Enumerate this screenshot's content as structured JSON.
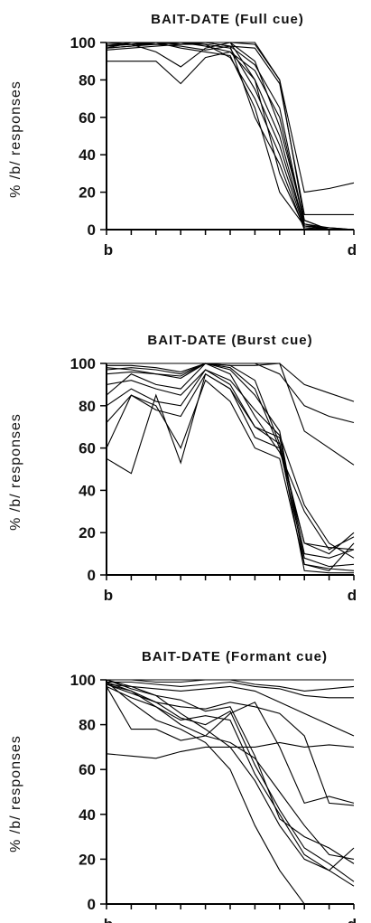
{
  "chart_data": [
    {
      "type": "line",
      "title": "BAIT-DATE  (Full  cue)",
      "ylabel": "%  /b/  responses",
      "x_tick_labels": [
        "b",
        "d"
      ],
      "y_ticks": [
        0,
        20,
        40,
        60,
        80,
        100
      ],
      "ylim": [
        0,
        100
      ],
      "x_steps": 10,
      "series": [
        {
          "values": [
            100,
            100,
            100,
            100,
            100,
            100,
            100,
            80,
            20,
            22,
            25
          ]
        },
        {
          "values": [
            98,
            99,
            100,
            100,
            100,
            98,
            97,
            78,
            8,
            8,
            8
          ]
        },
        {
          "values": [
            97,
            98,
            99,
            100,
            98,
            95,
            85,
            60,
            3,
            1,
            0
          ]
        },
        {
          "values": [
            99,
            99,
            95,
            87,
            97,
            100,
            90,
            55,
            5,
            0,
            0
          ]
        },
        {
          "values": [
            90,
            90,
            90,
            78,
            92,
            95,
            80,
            50,
            2,
            1,
            0
          ]
        },
        {
          "values": [
            96,
            97,
            98,
            99,
            99,
            92,
            70,
            40,
            1,
            0,
            0
          ]
        },
        {
          "values": [
            97,
            98,
            100,
            100,
            99,
            97,
            75,
            45,
            2,
            0,
            0
          ]
        },
        {
          "values": [
            98,
            99,
            100,
            99,
            100,
            98,
            88,
            65,
            3,
            0,
            0
          ]
        },
        {
          "values": [
            100,
            100,
            100,
            99,
            100,
            100,
            80,
            30,
            1,
            0,
            0
          ]
        },
        {
          "values": [
            97,
            100,
            99,
            98,
            96,
            98,
            60,
            35,
            0,
            0,
            0
          ]
        },
        {
          "values": [
            100,
            99,
            99,
            100,
            100,
            100,
            99,
            80,
            5,
            0,
            0
          ]
        },
        {
          "values": [
            98,
            100,
            100,
            97,
            95,
            93,
            65,
            20,
            2,
            0,
            0
          ]
        }
      ]
    },
    {
      "type": "line",
      "title": "BAIT-DATE  (Burst  cue)",
      "ylabel": "%  /b/  responses",
      "x_tick_labels": [
        "b",
        "d"
      ],
      "y_ticks": [
        0,
        20,
        40,
        60,
        80,
        100
      ],
      "ylim": [
        0,
        100
      ],
      "x_steps": 10,
      "series": [
        {
          "values": [
            100,
            100,
            100,
            100,
            100,
            100,
            100,
            100,
            90,
            86,
            82
          ]
        },
        {
          "values": [
            100,
            100,
            100,
            100,
            100,
            100,
            100,
            95,
            80,
            75,
            72
          ]
        },
        {
          "values": [
            55,
            48,
            85,
            53,
            95,
            88,
            70,
            65,
            10,
            8,
            12
          ]
        },
        {
          "values": [
            60,
            85,
            80,
            60,
            92,
            82,
            60,
            55,
            5,
            2,
            15
          ]
        },
        {
          "values": [
            72,
            85,
            78,
            75,
            95,
            88,
            65,
            60,
            8,
            4,
            5
          ]
        },
        {
          "values": [
            80,
            88,
            82,
            80,
            97,
            90,
            70,
            62,
            15,
            10,
            20
          ]
        },
        {
          "values": [
            85,
            95,
            90,
            88,
            100,
            95,
            75,
            58,
            30,
            12,
            18
          ]
        },
        {
          "values": [
            90,
            92,
            88,
            85,
            97,
            92,
            78,
            66,
            33,
            15,
            8
          ]
        },
        {
          "values": [
            95,
            96,
            95,
            93,
            100,
            97,
            85,
            68,
            5,
            3,
            2
          ]
        },
        {
          "values": [
            97,
            98,
            97,
            95,
            100,
            98,
            88,
            60,
            15,
            13,
            12
          ]
        },
        {
          "values": [
            99,
            99,
            98,
            96,
            100,
            99,
            92,
            62,
            2,
            1,
            1
          ]
        },
        {
          "values": [
            98,
            97,
            95,
            94,
            100,
            99,
            99,
            100,
            68,
            60,
            52
          ]
        }
      ]
    },
    {
      "type": "line",
      "title": "BAIT-DATE  (Formant  cue)",
      "ylabel": "%  /b/  responses",
      "x_tick_labels": [
        "b",
        "d"
      ],
      "y_ticks": [
        0,
        20,
        40,
        60,
        80,
        100
      ],
      "ylim": [
        0,
        100
      ],
      "x_steps": 10,
      "series": [
        {
          "values": [
            100,
            100,
            100,
            100,
            100,
            100,
            100,
            100,
            100,
            100,
            100
          ]
        },
        {
          "values": [
            100,
            100,
            99,
            99,
            100,
            100,
            98,
            97,
            95,
            96,
            97
          ]
        },
        {
          "values": [
            99,
            99,
            98,
            97,
            98,
            99,
            97,
            96,
            93,
            92,
            92
          ]
        },
        {
          "values": [
            98,
            97,
            96,
            95,
            96,
            97,
            95,
            90,
            85,
            80,
            75
          ]
        },
        {
          "values": [
            67,
            66,
            65,
            68,
            70,
            70,
            70,
            72,
            70,
            71,
            70
          ]
        },
        {
          "values": [
            98,
            95,
            90,
            88,
            87,
            90,
            88,
            85,
            75,
            45,
            44
          ]
        },
        {
          "values": [
            97,
            78,
            78,
            73,
            75,
            85,
            90,
            70,
            45,
            48,
            45
          ]
        },
        {
          "values": [
            99,
            95,
            88,
            80,
            75,
            72,
            65,
            50,
            35,
            22,
            20
          ]
        },
        {
          "values": [
            100,
            97,
            93,
            85,
            78,
            70,
            55,
            35,
            20,
            15,
            25
          ]
        },
        {
          "values": [
            98,
            94,
            90,
            83,
            80,
            86,
            62,
            42,
            25,
            18,
            10
          ]
        },
        {
          "values": [
            97,
            92,
            88,
            82,
            84,
            82,
            58,
            40,
            22,
            15,
            8
          ]
        },
        {
          "values": [
            99,
            90,
            82,
            78,
            72,
            60,
            35,
            15,
            0,
            0,
            0
          ]
        },
        {
          "values": [
            100,
            96,
            93,
            91,
            86,
            88,
            66,
            38,
            30,
            25,
            18
          ]
        }
      ]
    }
  ]
}
